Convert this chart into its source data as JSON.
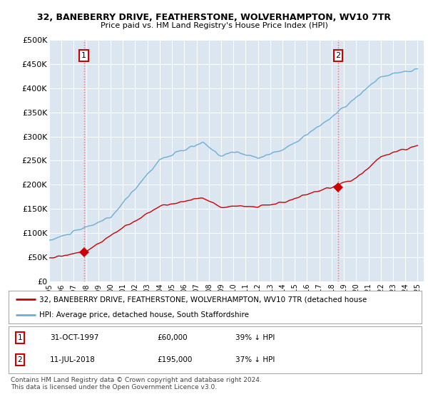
{
  "title1": "32, BANEBERRY DRIVE, FEATHERSTONE, WOLVERHAMPTON, WV10 7TR",
  "title2": "Price paid vs. HM Land Registry's House Price Index (HPI)",
  "ylabel_ticks": [
    "£0",
    "£50K",
    "£100K",
    "£150K",
    "£200K",
    "£250K",
    "£300K",
    "£350K",
    "£400K",
    "£450K",
    "£500K"
  ],
  "ytick_vals": [
    0,
    50000,
    100000,
    150000,
    200000,
    250000,
    300000,
    350000,
    400000,
    450000,
    500000
  ],
  "ylim": [
    0,
    500000
  ],
  "xlim_start": 1995.0,
  "xlim_end": 2025.5,
  "background_color": "#dce6f1",
  "hpi_color": "#6baed6",
  "price_color": "#cc0000",
  "dashed_line_color": "#e07070",
  "transaction1_date_num": 1997.83,
  "transaction1_price": 60000,
  "transaction1_label": "1",
  "transaction2_date_num": 2018.52,
  "transaction2_price": 195000,
  "transaction2_label": "2",
  "legend_line1": "32, BANEBERRY DRIVE, FEATHERSTONE, WOLVERHAMPTON, WV10 7TR (detached house",
  "legend_line2": "HPI: Average price, detached house, South Staffordshire",
  "note1_label": "1",
  "note1_date": "31-OCT-1997",
  "note1_price": "£60,000",
  "note1_hpi": "39% ↓ HPI",
  "note2_label": "2",
  "note2_date": "11-JUL-2018",
  "note2_price": "£195,000",
  "note2_hpi": "37% ↓ HPI",
  "footer": "Contains HM Land Registry data © Crown copyright and database right 2024.\nThis data is licensed under the Open Government Licence v3.0."
}
